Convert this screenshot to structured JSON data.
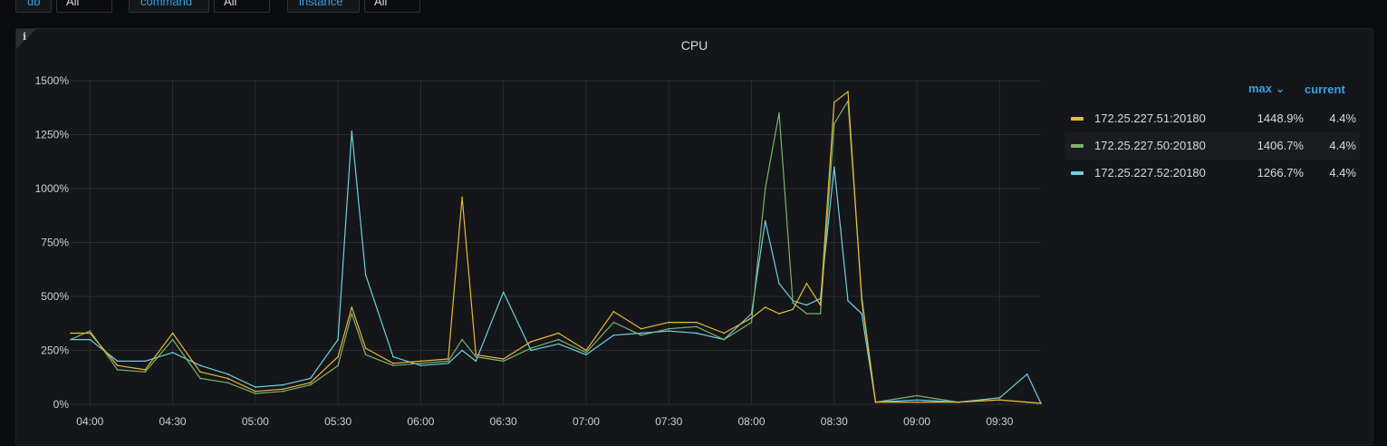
{
  "variables": [
    {
      "label": "db",
      "value": "All"
    },
    {
      "label": "command",
      "value": "All"
    },
    {
      "label": "instance",
      "value": "All"
    }
  ],
  "panel": {
    "title": "CPU",
    "info_icon": "i"
  },
  "legend": {
    "columns": {
      "max": "max ⌄",
      "current": "current"
    },
    "series": [
      {
        "name": "172.25.227.51:20180",
        "max": "1448.9%",
        "current": "4.4%",
        "color": "#eab839"
      },
      {
        "name": "172.25.227.50:20180",
        "max": "1406.7%",
        "current": "4.4%",
        "color": "#7eb26d"
      },
      {
        "name": "172.25.227.52:20180",
        "max": "1266.7%",
        "current": "4.4%",
        "color": "#6ed0e0"
      }
    ]
  },
  "chart_data": {
    "type": "line",
    "title": "CPU",
    "y_unit": "%",
    "ylim": [
      0,
      1500
    ],
    "y_ticks": [
      0,
      250,
      500,
      750,
      1000,
      1250,
      1500
    ],
    "y_tick_labels": [
      "0%",
      "250%",
      "500%",
      "750%",
      "1000%",
      "1250%",
      "1500%"
    ],
    "xlim": [
      "03:53",
      "09:45"
    ],
    "x_tick_labels": [
      "04:00",
      "04:30",
      "05:00",
      "05:30",
      "06:00",
      "06:30",
      "07:00",
      "07:30",
      "08:00",
      "08:30",
      "09:00",
      "09:30"
    ],
    "grid": true,
    "legend_position": "right",
    "x": [
      "03:53",
      "04:00",
      "04:10",
      "04:20",
      "04:30",
      "04:40",
      "04:50",
      "05:00",
      "05:10",
      "05:20",
      "05:30",
      "05:35",
      "05:40",
      "05:50",
      "06:00",
      "06:10",
      "06:15",
      "06:20",
      "06:30",
      "06:40",
      "06:50",
      "07:00",
      "07:10",
      "07:20",
      "07:30",
      "07:40",
      "07:50",
      "08:00",
      "08:05",
      "08:10",
      "08:15",
      "08:20",
      "08:25",
      "08:30",
      "08:35",
      "08:40",
      "08:45",
      "09:00",
      "09:15",
      "09:30",
      "09:40",
      "09:45"
    ],
    "series": [
      {
        "name": "172.25.227.51:20180",
        "color": "#eab839",
        "values": [
          330,
          330,
          180,
          160,
          330,
          150,
          120,
          60,
          70,
          100,
          220,
          450,
          260,
          190,
          200,
          210,
          960,
          230,
          210,
          290,
          330,
          250,
          430,
          350,
          380,
          380,
          330,
          400,
          450,
          420,
          440,
          560,
          460,
          1400,
          1449,
          480,
          10,
          10,
          10,
          20,
          10,
          4.4
        ]
      },
      {
        "name": "172.25.227.50:20180",
        "color": "#7eb26d",
        "values": [
          300,
          340,
          160,
          150,
          300,
          120,
          100,
          50,
          60,
          90,
          180,
          420,
          230,
          180,
          190,
          200,
          300,
          220,
          200,
          260,
          300,
          240,
          380,
          320,
          350,
          360,
          300,
          380,
          1000,
          1350,
          470,
          420,
          420,
          1300,
          1406,
          500,
          10,
          40,
          10,
          20,
          10,
          4.4
        ]
      },
      {
        "name": "172.25.227.52:20180",
        "color": "#6ed0e0",
        "values": [
          300,
          300,
          200,
          200,
          240,
          180,
          140,
          80,
          90,
          120,
          300,
          1266,
          600,
          220,
          180,
          190,
          250,
          200,
          520,
          250,
          280,
          230,
          320,
          330,
          340,
          330,
          300,
          420,
          850,
          560,
          480,
          460,
          490,
          1100,
          480,
          420,
          10,
          20,
          10,
          30,
          140,
          4.4
        ]
      }
    ]
  }
}
